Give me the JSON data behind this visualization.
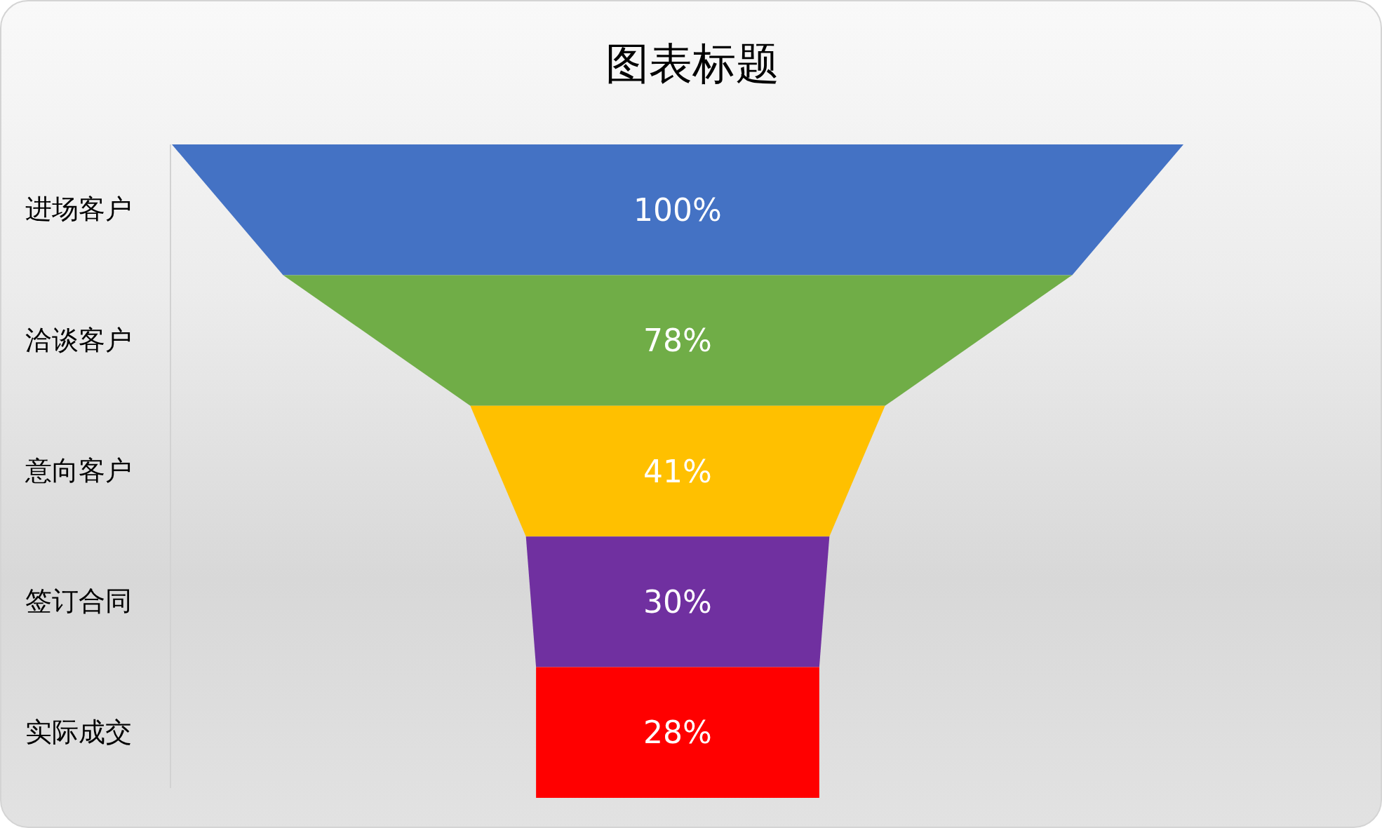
{
  "chart_data": {
    "type": "other",
    "title": "图表标题",
    "categories": [
      "进场客户",
      "洽谈客户",
      "意向客户",
      "签订合同",
      "实际成交"
    ],
    "values": [
      100,
      78,
      41,
      30,
      28
    ],
    "value_labels": [
      "100%",
      "78%",
      "41%",
      "30%",
      "28%"
    ],
    "colors": [
      "#4472c4",
      "#70ad47",
      "#ffc000",
      "#7030a0",
      "#ff0000"
    ]
  }
}
